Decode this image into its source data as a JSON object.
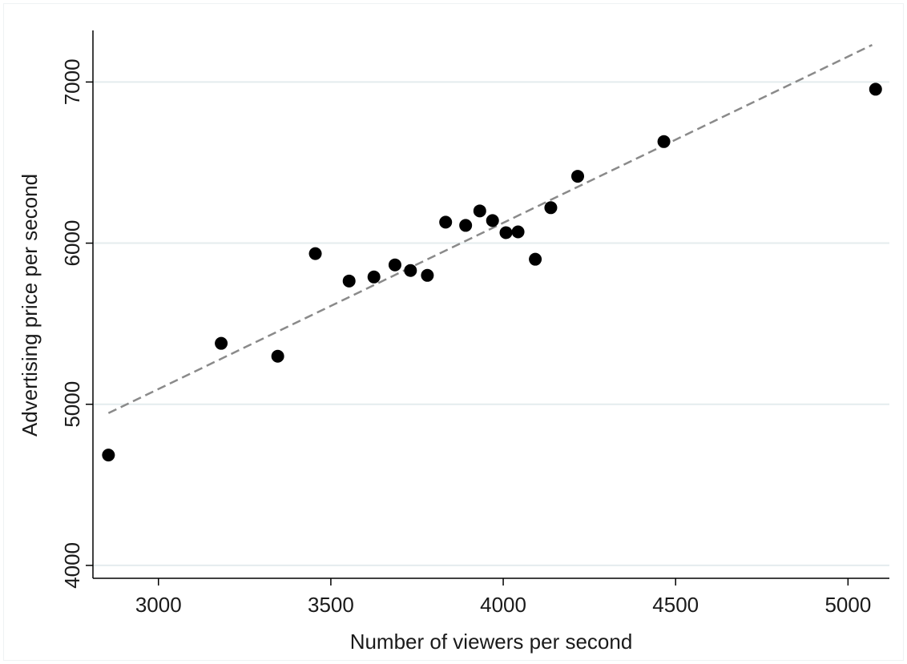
{
  "chart_data": {
    "type": "scatter",
    "title": "",
    "xlabel": "Number of viewers per second",
    "ylabel": "Advertising price per second",
    "xlim": [
      2810,
      5120
    ],
    "ylim": [
      3920,
      7320
    ],
    "x_ticks": [
      3000,
      3500,
      4000,
      4500,
      5000
    ],
    "y_ticks": [
      4000,
      5000,
      6000,
      7000
    ],
    "grid": "horizontal",
    "legend": "none",
    "colors": {
      "points": "#000000",
      "fit_line": "#8a8a8a",
      "grid": "#e4ecee",
      "axis": "#000000"
    },
    "series": [
      {
        "type": "scatter",
        "points": [
          {
            "x": 2855,
            "y": 4685
          },
          {
            "x": 3182,
            "y": 5378
          },
          {
            "x": 3346,
            "y": 5298
          },
          {
            "x": 3455,
            "y": 5935
          },
          {
            "x": 3553,
            "y": 5765
          },
          {
            "x": 3625,
            "y": 5790
          },
          {
            "x": 3686,
            "y": 5865
          },
          {
            "x": 3731,
            "y": 5830
          },
          {
            "x": 3780,
            "y": 5800
          },
          {
            "x": 3833,
            "y": 6130
          },
          {
            "x": 3891,
            "y": 6110
          },
          {
            "x": 3932,
            "y": 6200
          },
          {
            "x": 3969,
            "y": 6140
          },
          {
            "x": 4008,
            "y": 6065
          },
          {
            "x": 4043,
            "y": 6070
          },
          {
            "x": 4093,
            "y": 5900
          },
          {
            "x": 4138,
            "y": 6220
          },
          {
            "x": 4216,
            "y": 6415
          },
          {
            "x": 4466,
            "y": 6630
          },
          {
            "x": 5080,
            "y": 6955
          }
        ]
      },
      {
        "type": "line",
        "style": "dashed",
        "points": [
          {
            "x": 2855,
            "y": 4945
          },
          {
            "x": 5070,
            "y": 7230
          }
        ]
      }
    ]
  }
}
